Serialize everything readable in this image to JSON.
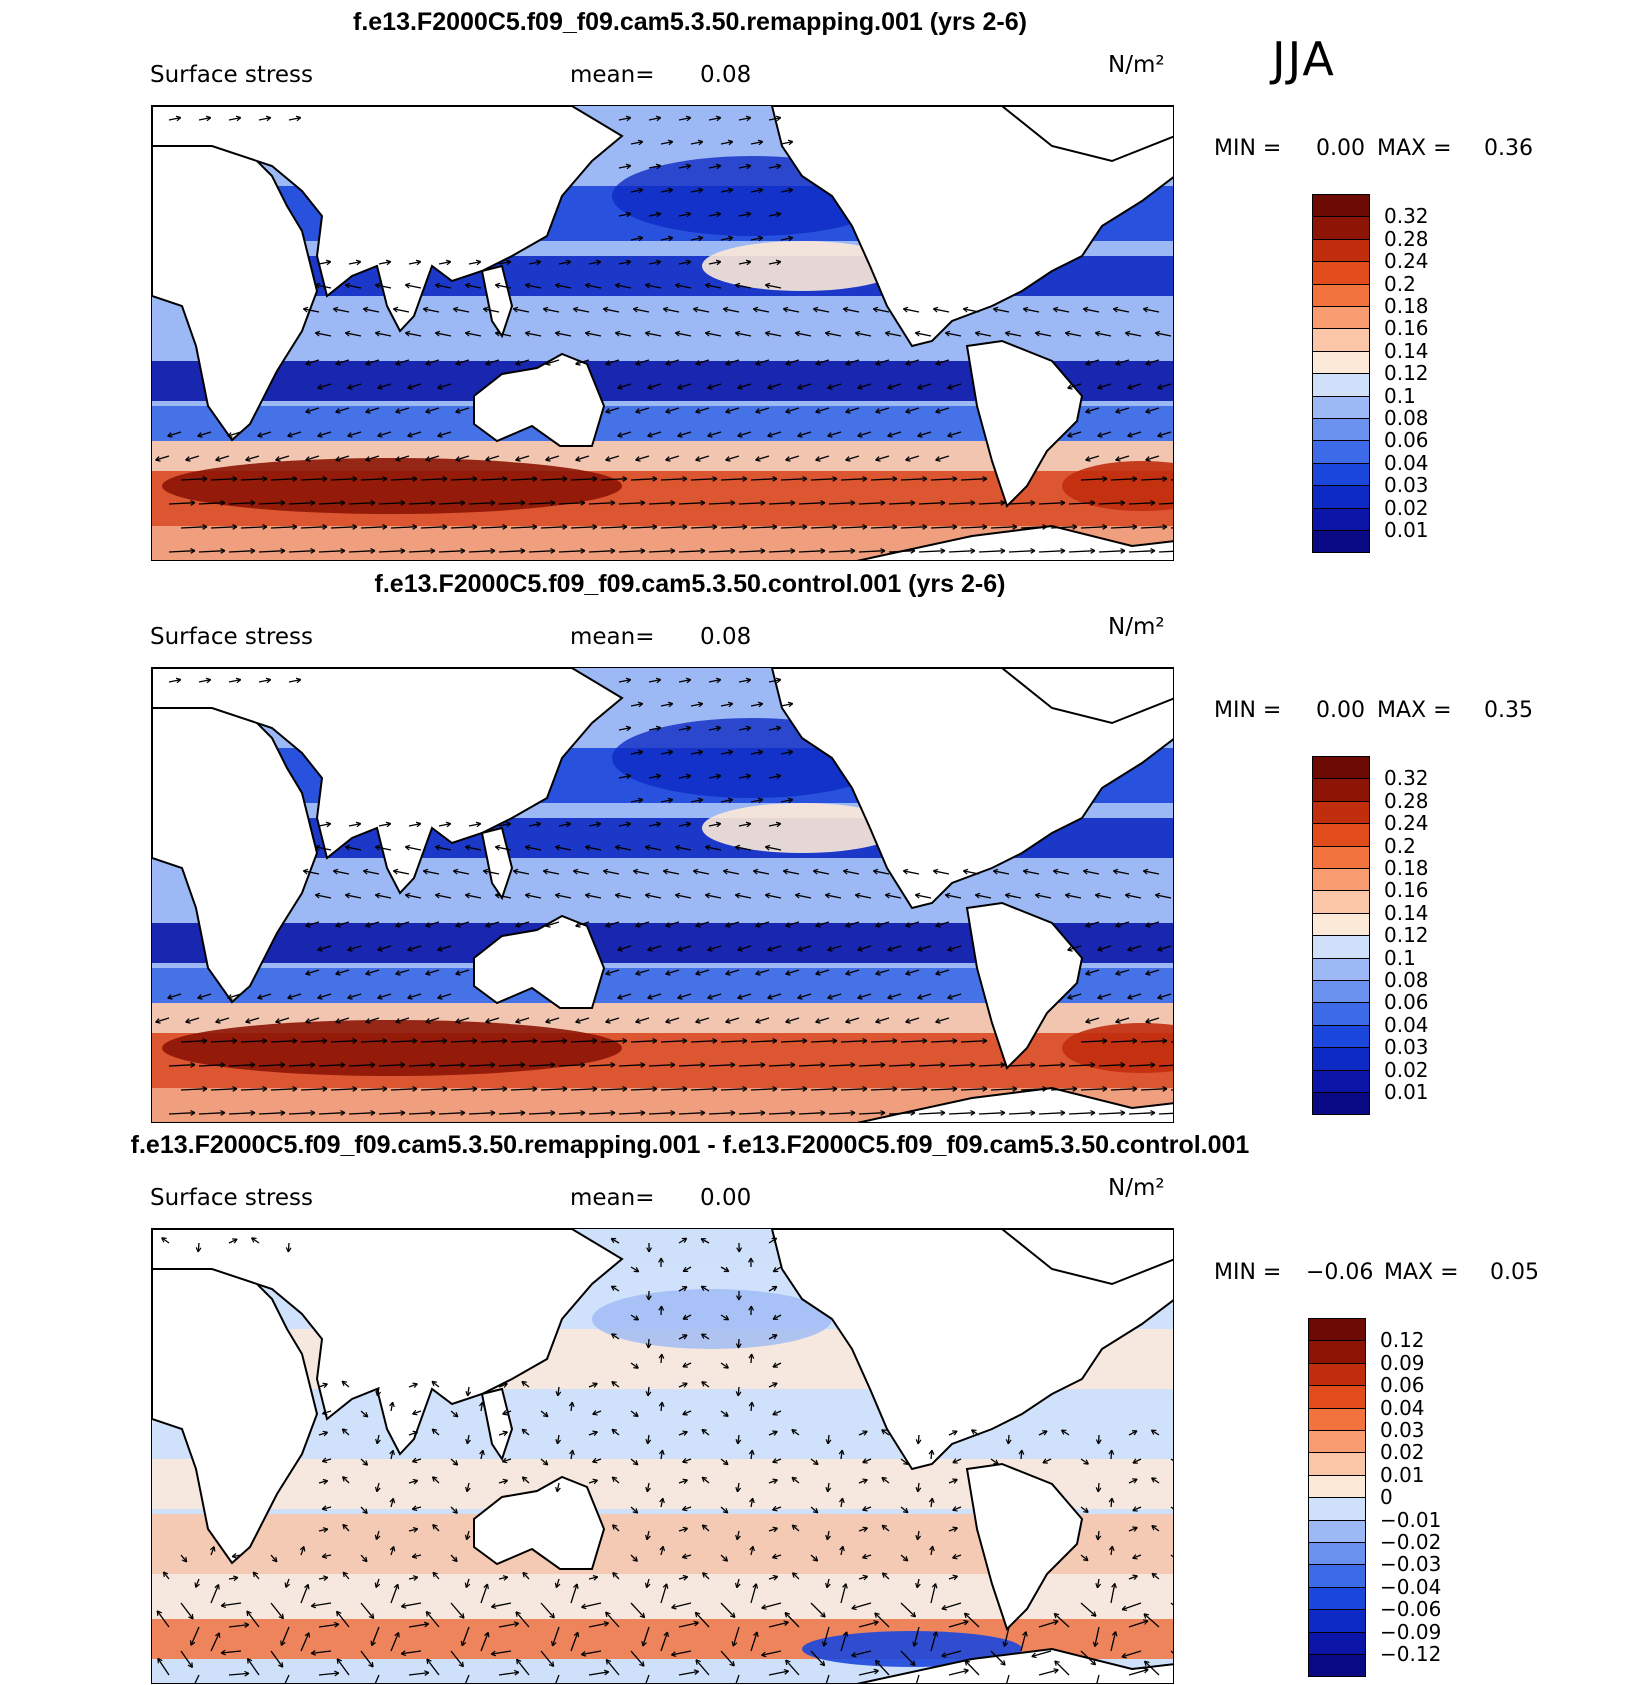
{
  "season": "JJA",
  "panels": [
    {
      "title": "f.e13.F2000C5.f09_f09.cam5.3.50.remapping.001 (yrs 2-6)",
      "variable": "Surface stress",
      "mean_label": "mean=",
      "mean_value": "0.08",
      "units": "N/m²",
      "min_label": "MIN =",
      "min_value": "0.00",
      "max_label": "MAX =",
      "max_value": "0.36",
      "kind": "abs",
      "colorbar": [
        "0.32",
        "0.28",
        "0.24",
        "0.2",
        "0.18",
        "0.16",
        "0.14",
        "0.12",
        "0.1",
        "0.08",
        "0.06",
        "0.04",
        "0.03",
        "0.02",
        "0.01"
      ]
    },
    {
      "title": "f.e13.F2000C5.f09_f09.cam5.3.50.control.001 (yrs 2-6)",
      "variable": "Surface stress",
      "mean_label": "mean=",
      "mean_value": "0.08",
      "units": "N/m²",
      "min_label": "MIN =",
      "min_value": "0.00",
      "max_label": "MAX =",
      "max_value": "0.35",
      "kind": "abs",
      "colorbar": [
        "0.32",
        "0.28",
        "0.24",
        "0.2",
        "0.18",
        "0.16",
        "0.14",
        "0.12",
        "0.1",
        "0.08",
        "0.06",
        "0.04",
        "0.03",
        "0.02",
        "0.01"
      ]
    },
    {
      "title": "f.e13.F2000C5.f09_f09.cam5.3.50.remapping.001 - f.e13.F2000C5.f09_f09.cam5.3.50.control.001",
      "variable": "Surface stress",
      "mean_label": "mean=",
      "mean_value": "0.00",
      "units": "N/m²",
      "min_label": "MIN =",
      "min_value": "−0.06",
      "max_label": "MAX =",
      "max_value": "0.05",
      "kind": "diff",
      "colorbar": [
        "0.12",
        "0.09",
        "0.06",
        "0.04",
        "0.03",
        "0.02",
        "0.01",
        "0",
        "−0.01",
        "−0.02",
        "−0.03",
        "−0.04",
        "−0.06",
        "−0.09",
        "−0.12"
      ]
    }
  ],
  "palettes": {
    "abs": [
      "#0b0a85",
      "#0b16a8",
      "#0e2ac4",
      "#1c47dc",
      "#3d6ae6",
      "#6a91ee",
      "#9db9f5",
      "#cfe0fa",
      "#fde9d8",
      "#fbc6a7",
      "#f89c71",
      "#f3733f",
      "#e24b1c",
      "#c02e0e",
      "#8c1506",
      "#6b0b03"
    ],
    "diff": [
      "#0b0a85",
      "#0b16a8",
      "#0e2ac4",
      "#1c47dc",
      "#3d6ae6",
      "#6a91ee",
      "#9db9f5",
      "#cfe0fa",
      "#fde9d8",
      "#fbc6a7",
      "#f89c71",
      "#f3733f",
      "#e24b1c",
      "#c02e0e",
      "#8c1506",
      "#6b0b03"
    ]
  }
}
